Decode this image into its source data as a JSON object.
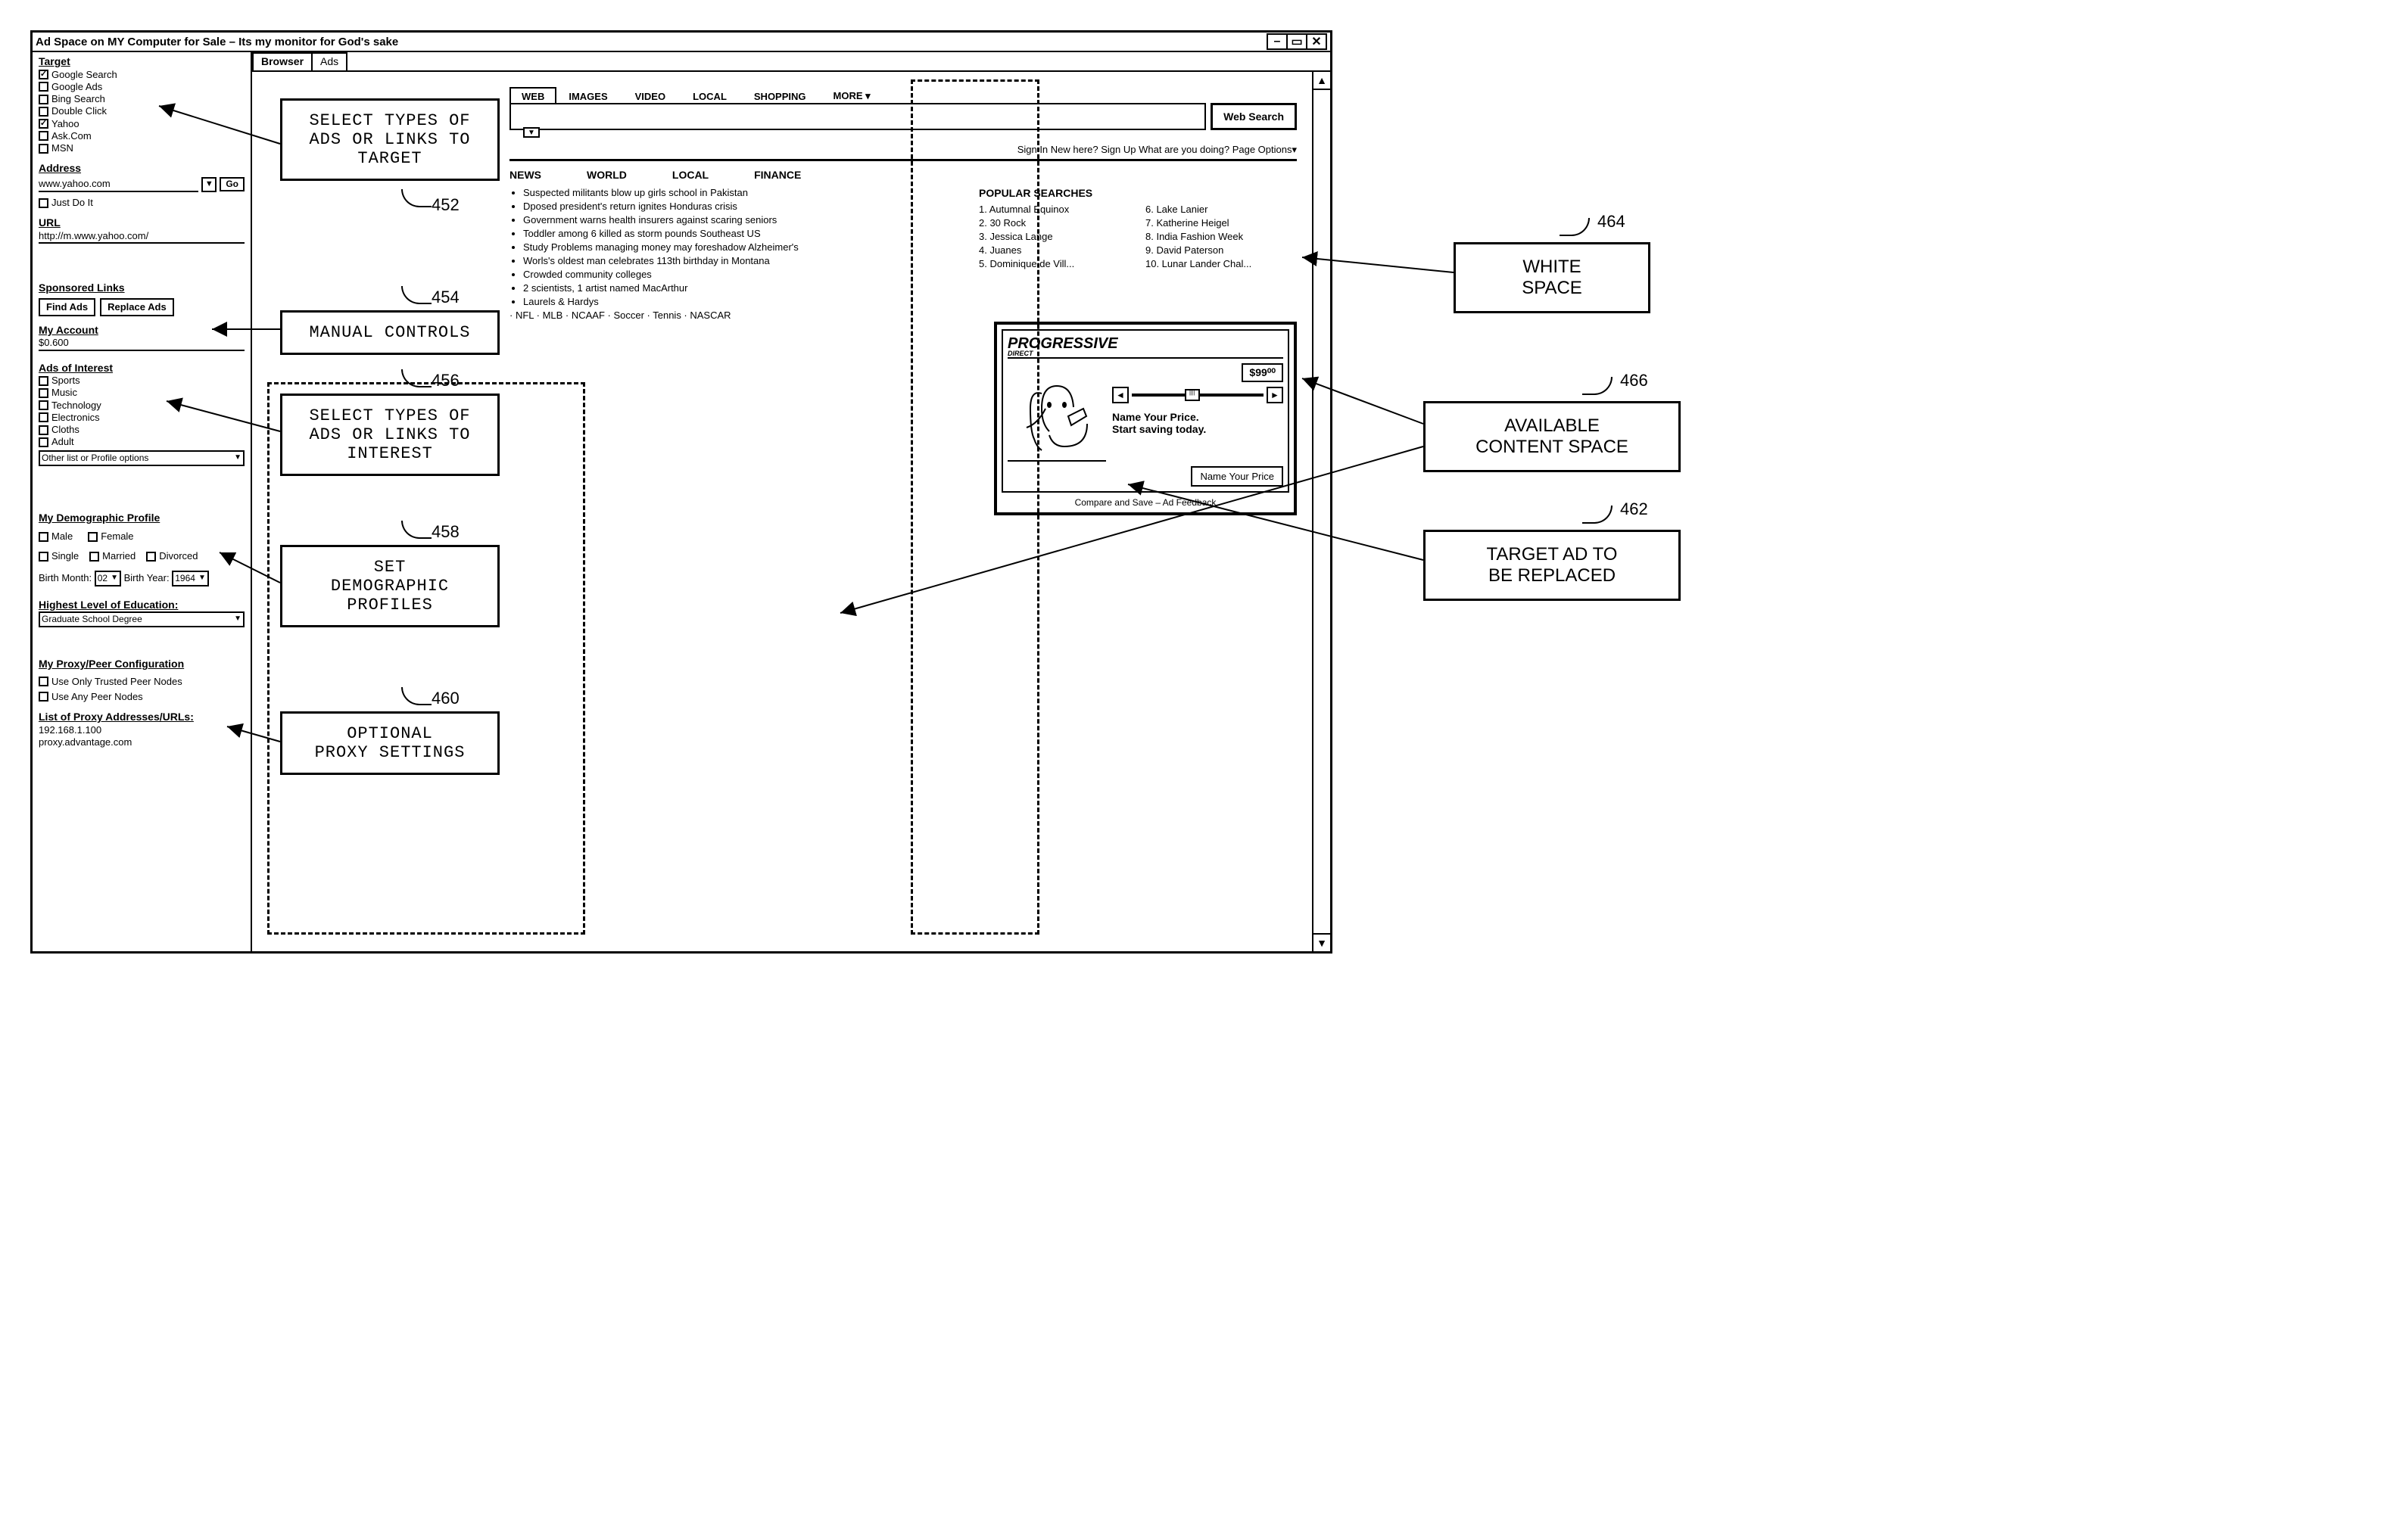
{
  "window": {
    "title": "Ad Space on MY Computer for Sale – Its my monitor for God's sake",
    "tabs": [
      "Browser",
      "Ads"
    ]
  },
  "sidebar": {
    "target_label": "Target",
    "targets": [
      {
        "label": "Google Search",
        "checked": true
      },
      {
        "label": "Google Ads",
        "checked": false
      },
      {
        "label": "Bing Search",
        "checked": false
      },
      {
        "label": "Double Click",
        "checked": false
      },
      {
        "label": "Yahoo",
        "checked": true
      },
      {
        "label": "Ask.Com",
        "checked": false
      },
      {
        "label": "MSN",
        "checked": false
      }
    ],
    "address_label": "Address",
    "address_value": "www.yahoo.com",
    "go_label": "Go",
    "just_do_it": "Just Do It",
    "url_label": "URL",
    "url_value": "http://m.www.yahoo.com/",
    "sponsored_label": "Sponsored Links",
    "find_ads": "Find Ads",
    "replace_ads": "Replace Ads",
    "my_account_label": "My Account",
    "my_account_value": "$0.600",
    "ads_of_interest_label": "Ads of Interest",
    "interests": [
      {
        "label": "Sports",
        "checked": false
      },
      {
        "label": "Music",
        "checked": false
      },
      {
        "label": "Technology",
        "checked": false
      },
      {
        "label": "Electronics",
        "checked": false
      },
      {
        "label": "Cloths",
        "checked": false
      },
      {
        "label": "Adult",
        "checked": false
      }
    ],
    "other_list_label": "Other list or Profile options",
    "demographic_label": "My Demographic Profile",
    "gender": [
      {
        "label": "Male"
      },
      {
        "label": "Female"
      }
    ],
    "marital": [
      {
        "label": "Single"
      },
      {
        "label": "Married"
      },
      {
        "label": "Divorced"
      }
    ],
    "birth_month_label": "Birth Month:",
    "birth_month_value": "02",
    "birth_year_label": "Birth Year:",
    "birth_year_value": "1964",
    "education_label": "Highest Level of Education:",
    "education_value": "Graduate School Degree",
    "proxy_label": "My Proxy/Peer Configuration",
    "proxy_opts": [
      {
        "label": "Use Only Trusted Peer Nodes"
      },
      {
        "label": "Use Any Peer Nodes"
      }
    ],
    "proxy_list_label": "List of Proxy Addresses/URLs:",
    "proxy_list": [
      "192.168.1.100",
      "proxy.advantage.com"
    ]
  },
  "page": {
    "top_tabs": [
      "WEB",
      "IMAGES",
      "VIDEO",
      "LOCAL",
      "SHOPPING",
      "MORE ▾"
    ],
    "web_search_btn": "Web Search",
    "sub_links": "Sign In   New here? Sign Up   What are you doing?  Page Options▾",
    "categories": [
      "NEWS",
      "WORLD",
      "LOCAL",
      "FINANCE"
    ],
    "news": [
      "Suspected militants blow up girls school in Pakistan",
      "Dposed president's return ignites Honduras crisis",
      "Government warns health insurers against scaring seniors",
      "Toddler among 6 killed as storm pounds Southeast US",
      "Study Problems managing money may foreshadow Alzheimer's",
      "Worls's oldest man celebrates 113th birthday in Montana",
      "Crowded community colleges",
      "2 scientists, 1 artist named MacArthur",
      "Laurels & Hardys",
      "NFL · MLB · NCAAF · Soccer · Tennis · NASCAR"
    ],
    "popular_title": "POPULAR SEARCHES",
    "popular_left": [
      "1.  Autumnal Equinox",
      "2.  30 Rock",
      "3.  Jessica Lange",
      "4.  Juanes",
      "5.  Dominique de Vill..."
    ],
    "popular_right": [
      "6.  Lake Lanier",
      "7.  Katherine Heigel",
      "8.  India Fashion Week",
      "9.  David Paterson",
      "10. Lunar Lander Chal..."
    ]
  },
  "ad": {
    "brand": "PROGRESSIVE",
    "direct": "DIRECT",
    "price": "$99⁰⁰",
    "line1": "Name Your Price.",
    "line2": "Start saving today.",
    "cta": "Name Your Price",
    "footer": "Compare and Save – Ad Feedback"
  },
  "callouts": {
    "c452": {
      "text": "SELECT TYPES OF\nADS OR LINKS TO\nTARGET",
      "num": "452"
    },
    "c454": {
      "text": "MANUAL CONTROLS",
      "num": "454"
    },
    "c456": {
      "text": "SELECT TYPES OF\nADS OR LINKS TO\nINTEREST",
      "num": "456"
    },
    "c458": {
      "text": "SET\nDEMOGRAPHIC\nPROFILES",
      "num": "458"
    },
    "c460": {
      "text": "OPTIONAL\nPROXY SETTINGS",
      "num": "460"
    },
    "c462": {
      "text": "TARGET AD TO\nBE REPLACED",
      "num": "462"
    },
    "c464": {
      "text": "WHITE\nSPACE",
      "num": "464"
    },
    "c466": {
      "text": "AVAILABLE\nCONTENT SPACE",
      "num": "466"
    }
  }
}
